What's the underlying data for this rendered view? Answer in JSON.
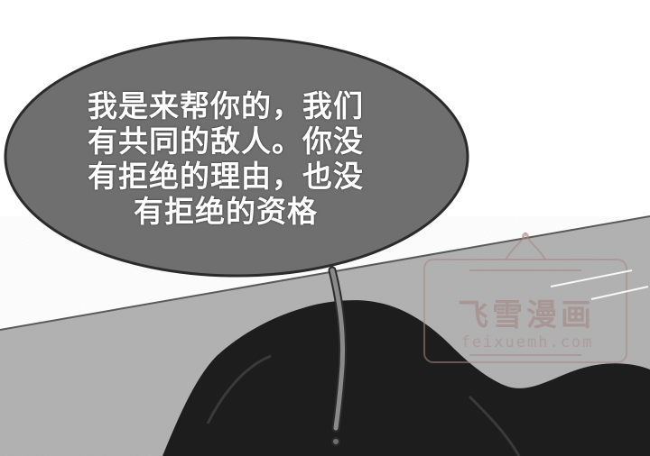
{
  "speech_bubble": {
    "lines": [
      "我是来帮你的，我们",
      "有共同的敌人。你没",
      "有拒绝的理由，也没",
      "有拒绝的资格"
    ]
  },
  "watermark": {
    "title": "飞雪漫画",
    "url": "feixuemh.com"
  },
  "colors": {
    "bubble": "#6e6e6e",
    "sky": "#ffffff",
    "ground": "#b5b5b5",
    "silhouette": "#1e1e1e"
  }
}
